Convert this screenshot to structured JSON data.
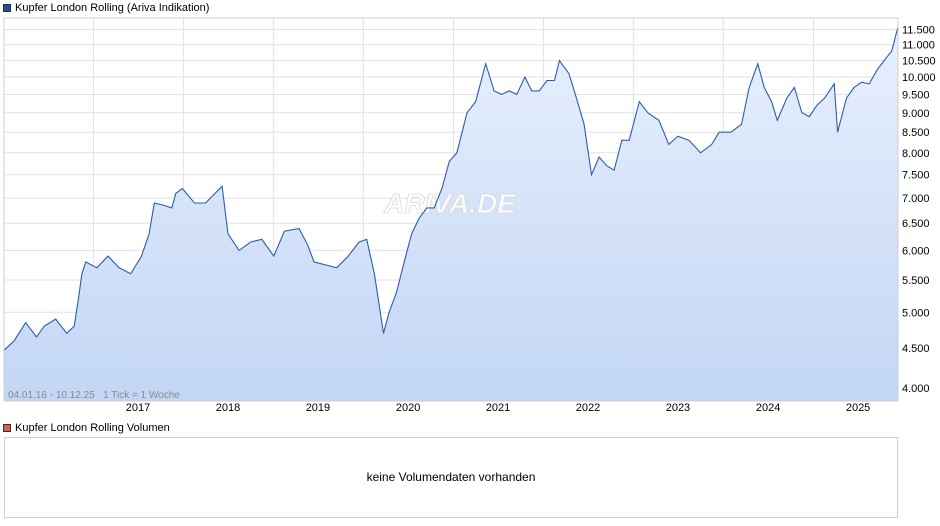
{
  "price_legend": {
    "label": "Kupfer London Rolling (Ariva Indikation)",
    "color": "#1f4e9c"
  },
  "volume_legend": {
    "label": "Kupfer London Rolling Volumen",
    "color": "#e05a50"
  },
  "watermark": "ARIVA.DE",
  "range_info": "04.01.16 - 10.12.25   1 Tick = 1 Woche",
  "volume_message": "keine Volumendaten vorhanden",
  "chart_data": {
    "type": "area",
    "title": "Kupfer London Rolling (Ariva Indikation)",
    "y_scale": "log",
    "ylim": [
      3850,
      11900
    ],
    "y_ticks": [
      4000,
      4500,
      5000,
      5500,
      6000,
      6500,
      7000,
      7500,
      8000,
      8500,
      9000,
      9500,
      10000,
      10500,
      11000,
      11500
    ],
    "y_tick_labels": [
      "4.000",
      "4.500",
      "5.000",
      "5.500",
      "6.000",
      "6.500",
      "7.000",
      "7.500",
      "8.000",
      "8.500",
      "9.000",
      "9.500",
      "10.000",
      "10.500",
      "11.000",
      "11.500"
    ],
    "x_range": [
      "2016-01-04",
      "2025-12-10"
    ],
    "x_tick_labels": [
      "2017",
      "2018",
      "2019",
      "2020",
      "2021",
      "2022",
      "2023",
      "2024",
      "2025"
    ],
    "grid": true,
    "colors": {
      "line": "#2a5db0",
      "fill_top": "#e8f0fc",
      "fill_bottom": "#c2d6f5",
      "grid": "#e2e2e2"
    },
    "series": [
      {
        "name": "Kupfer London Rolling (Ariva Indikation)",
        "x": [
          "2016-01-04",
          "2016-02-15",
          "2016-04-01",
          "2016-05-15",
          "2016-06-15",
          "2016-08-01",
          "2016-09-15",
          "2016-10-15",
          "2016-11-01",
          "2016-11-15",
          "2016-12-01",
          "2017-01-15",
          "2017-03-01",
          "2017-04-15",
          "2017-06-01",
          "2017-07-15",
          "2017-08-15",
          "2017-09-05",
          "2017-10-15",
          "2017-11-15",
          "2017-12-01",
          "2017-12-28",
          "2018-02-15",
          "2018-04-01",
          "2018-06-07",
          "2018-07-01",
          "2018-08-15",
          "2018-10-01",
          "2018-11-15",
          "2019-01-03",
          "2019-02-15",
          "2019-04-15",
          "2019-05-20",
          "2019-06-15",
          "2019-08-01",
          "2019-09-15",
          "2019-11-01",
          "2019-12-15",
          "2020-01-15",
          "2020-02-15",
          "2020-03-23",
          "2020-04-15",
          "2020-05-15",
          "2020-06-15",
          "2020-07-15",
          "2020-08-15",
          "2020-09-15",
          "2020-10-15",
          "2020-11-15",
          "2020-12-15",
          "2021-01-15",
          "2021-02-25",
          "2021-04-01",
          "2021-05-12",
          "2021-06-15",
          "2021-07-15",
          "2021-08-15",
          "2021-09-15",
          "2021-10-18",
          "2021-11-15",
          "2021-12-15",
          "2022-01-15",
          "2022-02-15",
          "2022-03-07",
          "2022-04-15",
          "2022-05-15",
          "2022-06-15",
          "2022-07-15",
          "2022-08-15",
          "2022-09-15",
          "2022-10-15",
          "2022-11-15",
          "2022-12-15",
          "2023-01-25",
          "2023-03-01",
          "2023-04-15",
          "2023-05-25",
          "2023-07-01",
          "2023-08-15",
          "2023-10-01",
          "2023-11-15",
          "2023-12-15",
          "2024-02-01",
          "2024-03-15",
          "2024-04-15",
          "2024-05-20",
          "2024-06-15",
          "2024-07-15",
          "2024-08-07",
          "2024-09-15",
          "2024-10-15",
          "2024-11-15",
          "2024-12-15",
          "2025-01-15",
          "2025-02-15",
          "2025-03-26",
          "2025-04-09",
          "2025-05-15",
          "2025-06-15",
          "2025-07-15",
          "2025-08-15",
          "2025-09-15",
          "2025-10-15",
          "2025-11-15",
          "2025-12-10"
        ],
        "values": [
          4470,
          4600,
          4850,
          4650,
          4800,
          4900,
          4700,
          4800,
          5200,
          5600,
          5800,
          5700,
          5900,
          5700,
          5600,
          5900,
          6300,
          6900,
          6850,
          6800,
          7100,
          7200,
          6900,
          6900,
          7250,
          6300,
          6000,
          6150,
          6200,
          5900,
          6350,
          6400,
          6100,
          5800,
          5750,
          5700,
          5900,
          6150,
          6200,
          5600,
          4700,
          5000,
          5300,
          5800,
          6300,
          6600,
          6800,
          6800,
          7200,
          7800,
          8000,
          9000,
          9300,
          10400,
          9600,
          9500,
          9600,
          9500,
          10000,
          9600,
          9600,
          9900,
          9900,
          10500,
          10100,
          9400,
          8700,
          7500,
          7900,
          7700,
          7600,
          8300,
          8300,
          9300,
          9000,
          8800,
          8200,
          8400,
          8300,
          8000,
          8200,
          8500,
          8500,
          8700,
          9700,
          10400,
          9700,
          9300,
          8800,
          9400,
          9700,
          9000,
          8900,
          9200,
          9400,
          9800,
          8500,
          9400,
          9700,
          9850,
          9800,
          10200,
          10500,
          10800,
          11600
        ]
      }
    ]
  }
}
